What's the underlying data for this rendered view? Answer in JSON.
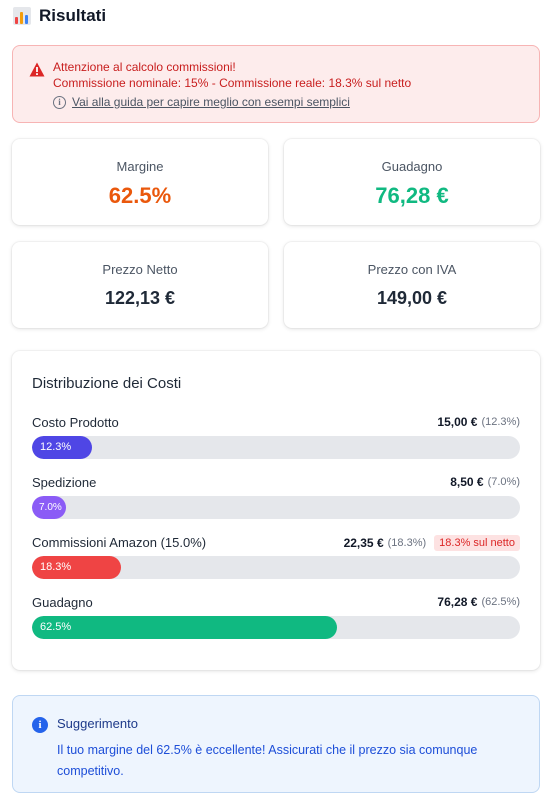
{
  "header": {
    "title": "Risultati",
    "icon": "bar-chart-icon"
  },
  "alert": {
    "line1": "Attenzione al calcolo commissioni!",
    "line2": "Commissione nominale: 15% - Commissione reale: 18.3% sul netto",
    "guide_link": "Vai alla guida per capire meglio con esempi semplici",
    "color": "#c81e1e"
  },
  "metrics": {
    "margine": {
      "label": "Margine",
      "value": "62.5%",
      "color": "#ea580c"
    },
    "guadagno": {
      "label": "Guadagno",
      "value": "76,28 €",
      "color": "#10b981"
    },
    "prezzo_netto": {
      "label": "Prezzo Netto",
      "value": "122,13 €"
    },
    "prezzo_iva": {
      "label": "Prezzo con IVA",
      "value": "149,00 €"
    }
  },
  "distribution": {
    "title": "Distribuzione dei Costi",
    "rows": [
      {
        "name": "Costo Prodotto",
        "amount": "15,00 €",
        "percent_text": "(12.3%)",
        "bar_label": "12.3%",
        "fraction": 0.123,
        "color": "#4f46e5"
      },
      {
        "name": "Spedizione",
        "amount": "8,50 €",
        "percent_text": "(7.0%)",
        "bar_label": "7.0%",
        "fraction": 0.07,
        "color": "#8b5cf6"
      },
      {
        "name": "Commissioni Amazon (15.0%)",
        "amount": "22,35 €",
        "percent_text": "(18.3%)",
        "badge": "18.3% sul netto",
        "bar_label": "18.3%",
        "fraction": 0.183,
        "color": "#ef4444"
      },
      {
        "name": "Guadagno",
        "amount": "76,28 €",
        "percent_text": "(62.5%)",
        "bar_label": "62.5%",
        "fraction": 0.625,
        "color": "#10b981"
      }
    ]
  },
  "suggestion": {
    "title": "Suggerimento",
    "text": "Il tuo margine del 62.5% è eccellente! Assicurati che il prezzo sia comunque competitivo."
  }
}
